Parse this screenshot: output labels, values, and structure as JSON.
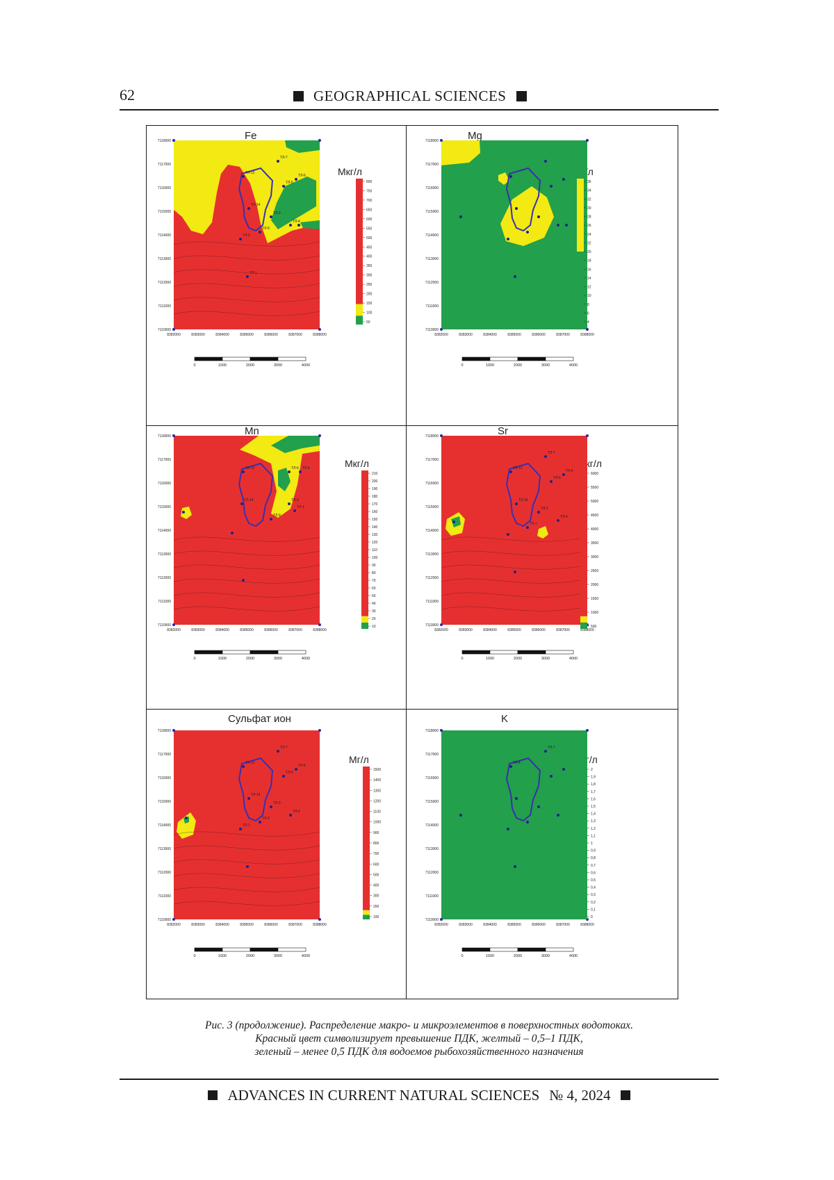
{
  "header": {
    "page_number": "62",
    "section": "GEOGRAPHICAL SCIENCES"
  },
  "panels": [
    {
      "title": "Fe",
      "unit": "Мкг/л",
      "y_ticks": [
        "7118000",
        "7117000",
        "7116000",
        "7115000",
        "7114000",
        "7113000",
        "7112000",
        "7111000",
        "7110000"
      ],
      "x_ticks": [
        "8382000",
        "8383000",
        "8384000",
        "8385000",
        "8386000",
        "8387000",
        "8388000"
      ],
      "scalebar": [
        "0",
        "1000",
        "2000",
        "3000",
        "4000"
      ],
      "legend_ticks": [
        "800",
        "750",
        "700",
        "650",
        "600",
        "550",
        "500",
        "450",
        "400",
        "350",
        "300",
        "250",
        "200",
        "150",
        "100",
        "50"
      ],
      "legend_bands": [
        {
          "color": "#e63030",
          "share": 0.86
        },
        {
          "color": "#f2ea12",
          "share": 0.08
        },
        {
          "color": "#23a04b",
          "share": 0.06
        }
      ],
      "background": "red",
      "points": [
        "ТЛ-7",
        "ТЛ-12",
        "ТЛ-6",
        "ТЛ-5",
        "ТЛ-14",
        "ТЛ-4",
        "ТЛ-3",
        "ТЛ-9",
        "ТЛ-2",
        "ТЛ-1"
      ]
    },
    {
      "title": "Mg",
      "unit": "Мг/л",
      "y_ticks": [
        "7118000",
        "7117000",
        "7116000",
        "7115000",
        "7114000",
        "7113000",
        "7112000",
        "7111000",
        "7110000"
      ],
      "x_ticks": [
        "8382000",
        "8383000",
        "8384000",
        "8385000",
        "8386000",
        "8387000",
        "8388000"
      ],
      "scalebar": [
        "0",
        "1000",
        "2000",
        "3000",
        "4000"
      ],
      "legend_ticks": [
        "36",
        "34",
        "32",
        "30",
        "28",
        "26",
        "24",
        "22",
        "20",
        "18",
        "16",
        "14",
        "12",
        "10",
        "8",
        "6",
        "4"
      ],
      "legend_bands": [
        {
          "color": "#f2ea12",
          "share": 0.5
        },
        {
          "color": "#23a04b",
          "share": 0.5
        }
      ],
      "background": "green",
      "points": []
    },
    {
      "title": "Mn",
      "unit": "Мкг/л",
      "y_ticks": [
        "7118000",
        "7117000",
        "7116000",
        "7115000",
        "7114000",
        "7113000",
        "7112000",
        "7111000",
        "7110000"
      ],
      "x_ticks": [
        "8382000",
        "8383000",
        "8384000",
        "8385000",
        "8386000",
        "8387000",
        "8388000"
      ],
      "scalebar": [
        "0",
        "1000",
        "2000",
        "3000",
        "4000"
      ],
      "legend_ticks": [
        "210",
        "200",
        "190",
        "180",
        "170",
        "160",
        "150",
        "140",
        "130",
        "120",
        "110",
        "100",
        "90",
        "80",
        "70",
        "60",
        "50",
        "40",
        "30",
        "20",
        "10"
      ],
      "legend_bands": [
        {
          "color": "#e63030",
          "share": 0.92
        },
        {
          "color": "#f2ea12",
          "share": 0.04
        },
        {
          "color": "#23a04b",
          "share": 0.04
        }
      ],
      "background": "red",
      "points": [
        "ТЛ-12",
        "ТЛ-6",
        "ТЛ-5",
        "ТЛ-14",
        "ТЛ-3",
        "ТЛ-9",
        "ТЛ-1"
      ]
    },
    {
      "title": "Sr",
      "unit": "Мкг/л",
      "y_ticks": [
        "7118000",
        "7117000",
        "7116000",
        "7115000",
        "7114000",
        "7113000",
        "7112000",
        "7111000",
        "7110000"
      ],
      "x_ticks": [
        "8382000",
        "8383000",
        "8384000",
        "8385000",
        "8386000",
        "8387000",
        "8388000"
      ],
      "scalebar": [
        "0",
        "1000",
        "2000",
        "3000",
        "4000"
      ],
      "legend_ticks": [
        "6000",
        "5500",
        "5000",
        "4500",
        "4000",
        "3500",
        "3000",
        "2500",
        "2000",
        "1500",
        "1000",
        "500"
      ],
      "legend_bands": [
        {
          "color": "#e63030",
          "share": 0.92
        },
        {
          "color": "#f2ea12",
          "share": 0.04
        },
        {
          "color": "#23a04b",
          "share": 0.04
        }
      ],
      "background": "red",
      "points": [
        "ТЛ-7",
        "ТЛ-12",
        "ТЛ-6",
        "ТЛ-5",
        "ТЛ-14",
        "ТЛ-4",
        "ТЛ-2",
        "ТЛ-1"
      ]
    },
    {
      "title": "Сульфат ион",
      "unit": "Мг/л",
      "y_ticks": [
        "7118000",
        "7117000",
        "7116000",
        "7115000",
        "7114000",
        "7113000",
        "7112000",
        "7111000",
        "7110000"
      ],
      "x_ticks": [
        "8382000",
        "8383000",
        "8384000",
        "8385000",
        "8386000",
        "8387000",
        "8388000"
      ],
      "scalebar": [
        "0",
        "1000",
        "2000",
        "3000",
        "4000"
      ],
      "legend_ticks": [
        "1500",
        "1400",
        "1300",
        "1200",
        "1100",
        "1000",
        "900",
        "800",
        "700",
        "600",
        "500",
        "400",
        "300",
        "200",
        "100"
      ],
      "legend_bands": [
        {
          "color": "#e63030",
          "share": 0.94
        },
        {
          "color": "#f2ea12",
          "share": 0.03
        },
        {
          "color": "#23a04b",
          "share": 0.03
        }
      ],
      "background": "red",
      "points": [
        "ТЛ-7",
        "ТЛ-12",
        "ТЛ-6",
        "ТЛ-5",
        "ТЛ-14",
        "ТЛ-4",
        "ТЛ-3",
        "ТЛ-2",
        "ТЛ-1"
      ]
    },
    {
      "title": "K",
      "unit": "Мг/л",
      "y_ticks": [
        "7118000",
        "7117000",
        "7116000",
        "7115000",
        "7114000",
        "7113000",
        "7112000",
        "7111000",
        "7110000"
      ],
      "x_ticks": [
        "8382000",
        "8383000",
        "8384000",
        "8385000",
        "8386000",
        "8387000",
        "8388000"
      ],
      "scalebar": [
        "0",
        "1000",
        "2000",
        "3000",
        "4000"
      ],
      "legend_ticks": [
        "2",
        "1,9",
        "1,8",
        "1,7",
        "1,6",
        "1,5",
        "1,4",
        "1,3",
        "1,2",
        "1,1",
        "1",
        "0,9",
        "0,8",
        "0,7",
        "0,6",
        "0,5",
        "0,4",
        "0,3",
        "0,2",
        "0,1",
        "0"
      ],
      "legend_bands": [
        {
          "color": "#23a04b",
          "share": 1.0
        }
      ],
      "background": "green",
      "points": [
        "ТЛ-7",
        "ТЛ-4"
      ]
    }
  ],
  "caption": {
    "line1": "Рис. 3 (продолжение). Распределение макро- и микроэлементов в поверхностных водотоках.",
    "line2": "Красный цвет символизирует превышение ПДК, желтый – 0,5–1 ПДК,",
    "line3": "зеленый – менее 0,5 ПДК для водоемов рыбохозяйственного назначения"
  },
  "footer": {
    "journal": "ADVANCES IN CURRENT NATURAL SCIENCES",
    "issue": "№ 4, 2024"
  },
  "colors": {
    "red": "#e63030",
    "yellow": "#f2ea12",
    "green": "#23a04b",
    "outline": "#3a2fb0"
  }
}
